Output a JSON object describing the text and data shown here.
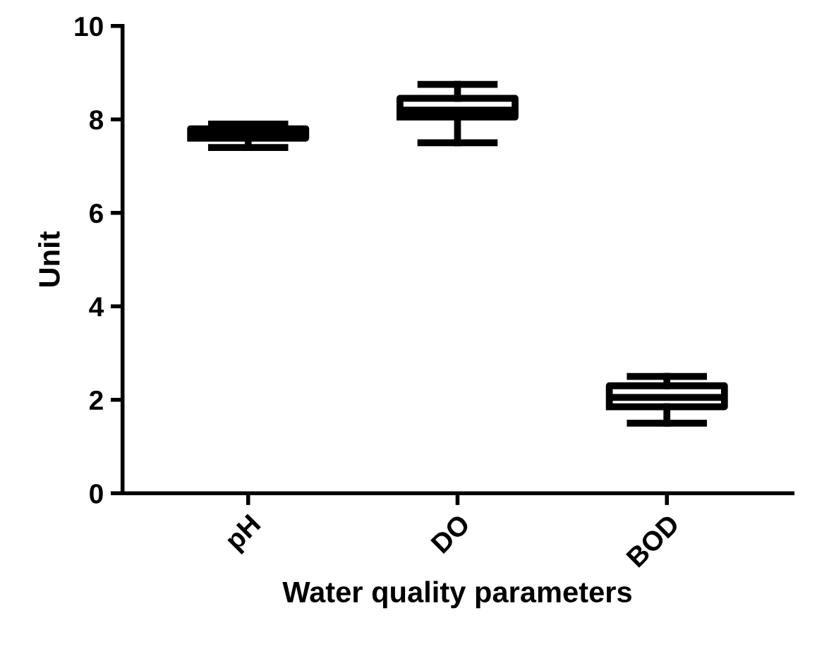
{
  "chart_data": {
    "type": "box",
    "xlabel": "Water quality parameters",
    "ylabel": "Unit",
    "categories": [
      "pH",
      "DO",
      "BOD"
    ],
    "boxes": [
      {
        "low": 7.4,
        "q1": 7.6,
        "median": 7.7,
        "q3": 7.8,
        "high": 7.9
      },
      {
        "low": 7.5,
        "q1": 8.05,
        "median": 8.2,
        "q3": 8.45,
        "high": 8.75
      },
      {
        "low": 1.5,
        "q1": 1.85,
        "median": 2.05,
        "q3": 2.3,
        "high": 2.5
      }
    ],
    "color": "#000000",
    "ylim": [
      0,
      10
    ],
    "yticks": [
      0,
      2,
      4,
      6,
      8,
      10
    ],
    "grid": false
  }
}
